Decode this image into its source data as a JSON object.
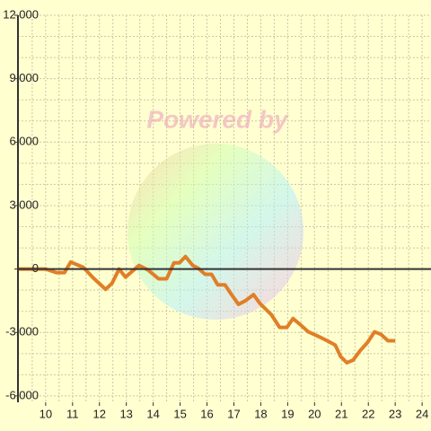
{
  "chart_data": {
    "type": "line",
    "watermark": "Powered by",
    "x": [
      9,
      10,
      10.4,
      10.7,
      10.93,
      11.4,
      11.77,
      12.23,
      12.47,
      12.73,
      12.97,
      13.47,
      13.8,
      14.2,
      14.5,
      14.77,
      14.97,
      15.2,
      15.47,
      15.67,
      15.93,
      16.17,
      16.4,
      16.67,
      16.87,
      17.17,
      17.43,
      17.73,
      17.97,
      18.4,
      18.7,
      18.97,
      19.2,
      19.47,
      19.77,
      20.2,
      20.53,
      20.77,
      20.97,
      21.2,
      21.43,
      21.7,
      21.97,
      22.23,
      22.47,
      22.73,
      23
    ],
    "series": [
      {
        "color": "#e07f27",
        "values": [
          0,
          0,
          -170,
          -170,
          330,
          80,
          -420,
          -960,
          -670,
          0,
          -380,
          170,
          -40,
          -460,
          -460,
          290,
          290,
          590,
          170,
          40,
          -250,
          -250,
          -750,
          -750,
          -1130,
          -1670,
          -1500,
          -1210,
          -1630,
          -2170,
          -2760,
          -2760,
          -2340,
          -2630,
          -2970,
          -3220,
          -3430,
          -3600,
          -4140,
          -4430,
          -4310,
          -3850,
          -3470,
          -2970,
          -3090,
          -3390,
          -3390
        ]
      }
    ],
    "xlim": [
      8.97,
      24.33
    ],
    "ylim": [
      -6300,
      12000
    ],
    "xticks": [
      10,
      11,
      12,
      13,
      14,
      15,
      16,
      17,
      18,
      19,
      20,
      21,
      22,
      23,
      24
    ],
    "yticks": [
      {
        "value": -6000,
        "label": "-6,000"
      },
      {
        "value": -3000,
        "label": "-3,000"
      },
      0,
      {
        "value": 3000,
        "label": "3,000"
      },
      {
        "value": 6000,
        "label": "6,000"
      },
      {
        "value": 9000,
        "label": "9,000"
      },
      {
        "value": 12000,
        "label": "12,000"
      }
    ],
    "xgrid": [
      9.5,
      10,
      10.5,
      11,
      11.5,
      12,
      12.5,
      13,
      13.5,
      14,
      14.5,
      15,
      15.5,
      16,
      16.5,
      17,
      17.5,
      18,
      18.5,
      19,
      19.5,
      20,
      20.5,
      21,
      21.5,
      22,
      22.5,
      23,
      23.5,
      24
    ],
    "ygrid": [
      -6000,
      -5000,
      -4000,
      -3000,
      -2000,
      -1000,
      1000,
      2000,
      3000,
      4000,
      5000,
      6000,
      7000,
      8000,
      9000,
      10000,
      11000,
      12000
    ],
    "grid": true
  }
}
